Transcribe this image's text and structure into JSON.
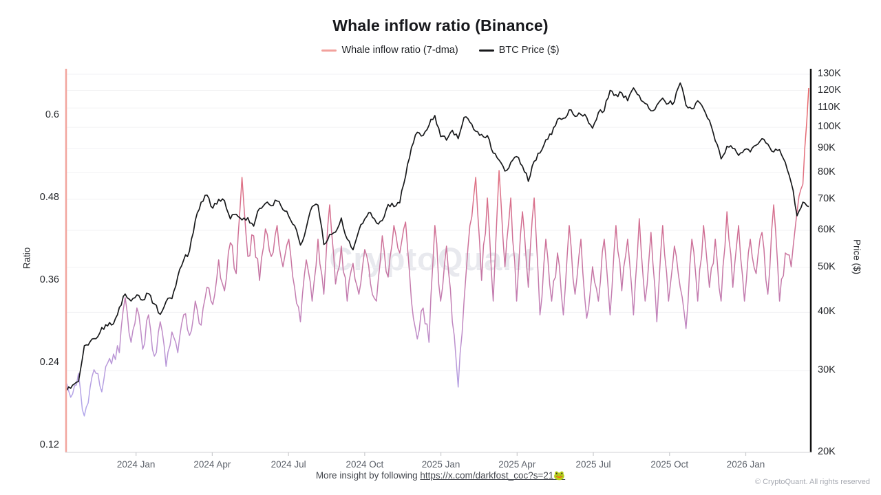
{
  "title": "Whale inflow ratio  (Binance)",
  "legend": [
    {
      "label": "Whale inflow ratio (7-dma)",
      "color": "#f2a19c"
    },
    {
      "label": "BTC Price ($)",
      "color": "#17181a"
    }
  ],
  "watermark": "CryptoQuant",
  "footer": {
    "prefix": "More insight by following ",
    "link": "https://x.com/darkfost_coc?s=21🐸"
  },
  "copyright": "© CryptoQuant. All rights reserved",
  "axes": {
    "left": {
      "title": "Ratio",
      "scale": "linear",
      "range": [
        0.11,
        0.668
      ],
      "ticks": [
        {
          "v": 0.6,
          "label": "0.6"
        },
        {
          "v": 0.48,
          "label": "0.48"
        },
        {
          "v": 0.36,
          "label": "0.36"
        },
        {
          "v": 0.24,
          "label": "0.24"
        },
        {
          "v": 0.12,
          "label": "0.12"
        }
      ]
    },
    "right": {
      "title": "Price ($)",
      "scale": "log",
      "range": [
        20,
        136
      ],
      "ticks": [
        {
          "v": 130,
          "label": "130K"
        },
        {
          "v": 120,
          "label": "120K"
        },
        {
          "v": 110,
          "label": "110K"
        },
        {
          "v": 100,
          "label": "100K"
        },
        {
          "v": 90,
          "label": "90K"
        },
        {
          "v": 80,
          "label": "80K"
        },
        {
          "v": 70,
          "label": "70K"
        },
        {
          "v": 60,
          "label": "60K"
        },
        {
          "v": 50,
          "label": "50K"
        },
        {
          "v": 40,
          "label": "40K"
        },
        {
          "v": 30,
          "label": "30K"
        },
        {
          "v": 20,
          "label": "20K"
        }
      ]
    },
    "x": {
      "ticks": [
        "2024 Jan",
        "2024 Apr",
        "2024 Jul",
        "2024 Oct",
        "2025 Jan",
        "2025 Apr",
        "2025 Jul",
        "2025 Oct",
        "2026 Jan"
      ]
    }
  },
  "chart_data": {
    "type": "line",
    "x_start": "2023-09-24",
    "x_end": "2026-03-01",
    "cadence": "weekly",
    "grid": "horizontal, at price ticks, very light",
    "legend_position": "top-center",
    "series": [
      {
        "name": "Whale inflow ratio (7-dma)",
        "axis": "left",
        "style": "value-gradient from lavender (low) through pink to red (high)",
        "gradient": [
          {
            "v": 0.66,
            "c": "#e95f5f"
          },
          {
            "v": 0.52,
            "c": "#e27180"
          },
          {
            "v": 0.44,
            "c": "#d26f92"
          },
          {
            "v": 0.37,
            "c": "#c577a5"
          },
          {
            "v": 0.31,
            "c": "#c283bb"
          },
          {
            "v": 0.25,
            "c": "#ba96d6"
          },
          {
            "v": 0.19,
            "c": "#b3a4e8"
          },
          {
            "v": 0.13,
            "c": "#b0abef"
          }
        ],
        "values": [
          0.21,
          0.195,
          0.225,
          0.163,
          0.205,
          0.225,
          0.198,
          0.24,
          0.253,
          0.255,
          0.335,
          0.27,
          0.32,
          0.26,
          0.31,
          0.25,
          0.3,
          0.235,
          0.285,
          0.255,
          0.31,
          0.28,
          0.33,
          0.295,
          0.35,
          0.325,
          0.39,
          0.345,
          0.415,
          0.37,
          0.51,
          0.395,
          0.425,
          0.36,
          0.435,
          0.395,
          0.44,
          0.38,
          0.42,
          0.35,
          0.3,
          0.39,
          0.33,
          0.42,
          0.34,
          0.47,
          0.355,
          0.41,
          0.33,
          0.385,
          0.34,
          0.405,
          0.355,
          0.33,
          0.425,
          0.365,
          0.44,
          0.4,
          0.445,
          0.33,
          0.275,
          0.32,
          0.27,
          0.44,
          0.33,
          0.41,
          0.3,
          0.205,
          0.33,
          0.44,
          0.51,
          0.36,
          0.48,
          0.33,
          0.52,
          0.38,
          0.48,
          0.33,
          0.46,
          0.35,
          0.48,
          0.31,
          0.42,
          0.33,
          0.4,
          0.31,
          0.44,
          0.34,
          0.42,
          0.305,
          0.38,
          0.33,
          0.42,
          0.31,
          0.44,
          0.345,
          0.42,
          0.31,
          0.45,
          0.33,
          0.43,
          0.3,
          0.44,
          0.33,
          0.41,
          0.35,
          0.29,
          0.42,
          0.33,
          0.44,
          0.35,
          0.42,
          0.33,
          0.46,
          0.35,
          0.44,
          0.33,
          0.42,
          0.37,
          0.43,
          0.34,
          0.47,
          0.33,
          0.4,
          0.38,
          0.46,
          0.5,
          0.64
        ]
      },
      {
        "name": "BTC Price ($)",
        "axis": "right",
        "color": "#17181a",
        "unit": "K USD",
        "values": [
          27.2,
          27.9,
          28.4,
          33.9,
          34.6,
          35.1,
          37.1,
          37.4,
          37.8,
          41.0,
          43.8,
          42.3,
          43.6,
          42.5,
          43.9,
          41.7,
          39.6,
          42.2,
          42.8,
          47.8,
          51.8,
          54.2,
          63.0,
          69.0,
          71.5,
          67.0,
          70.0,
          69.5,
          63.5,
          65.0,
          63.2,
          63.9,
          61.3,
          66.9,
          68.6,
          67.8,
          69.4,
          66.5,
          64.3,
          61.5,
          55.8,
          60.8,
          67.5,
          68.0,
          56.0,
          58.8,
          59.5,
          63.8,
          57.5,
          54.5,
          60.0,
          63.5,
          65.5,
          62.3,
          63.0,
          68.2,
          67.5,
          68.8,
          78.5,
          90.5,
          97.5,
          96.0,
          101.0,
          106.0,
          95.5,
          93.8,
          98.5,
          94.5,
          105.0,
          102.5,
          98.0,
          96.5,
          96.0,
          88.0,
          85.0,
          80.5,
          84.0,
          86.5,
          82.5,
          76.5,
          84.5,
          88.0,
          94.0,
          96.5,
          104.0,
          104.5,
          109.0,
          105.5,
          106.5,
          105.0,
          99.5,
          107.5,
          108.5,
          120.0,
          117.5,
          118.5,
          114.0,
          121.5,
          117.0,
          112.5,
          108.5,
          111.5,
          115.5,
          112.5,
          113.5,
          124.5,
          111.5,
          109.5,
          114.0,
          109.5,
          103.5,
          93.5,
          85.5,
          91.0,
          90.0,
          87.0,
          89.5,
          88.5,
          91.5,
          94.5,
          92.0,
          88.5,
          89.5,
          84.0,
          76.0,
          64.5,
          69.0,
          67.5
        ]
      }
    ]
  },
  "colors": {
    "left_spine": "#f2a59e",
    "right_spine": "#111111",
    "bottom_axis": "#d9dadd",
    "gridline": "#f2f2f4",
    "x_tick_mark": "#c9cacd"
  }
}
